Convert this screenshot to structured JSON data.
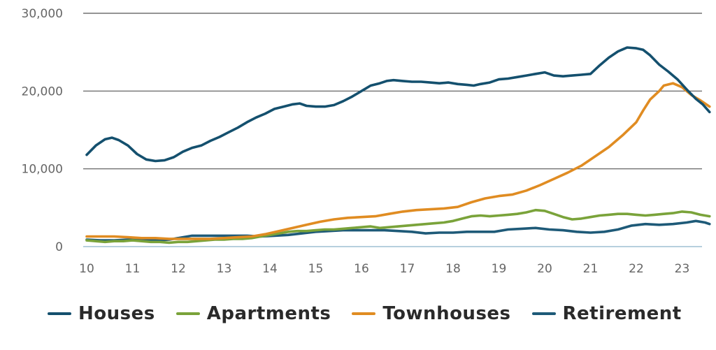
{
  "chart_data": {
    "type": "line",
    "title": "",
    "xlabel": "",
    "ylabel": "",
    "x_ticks": [
      "10",
      "11",
      "12",
      "13",
      "14",
      "15",
      "16",
      "17",
      "18",
      "19",
      "20",
      "21",
      "22",
      "23"
    ],
    "y_ticks": [
      "0",
      "10,000",
      "20,000",
      "30,000"
    ],
    "xlim": [
      10,
      23.6
    ],
    "ylim": [
      0,
      30000
    ],
    "grid": "horizontal",
    "legend_position": "bottom",
    "series": [
      {
        "name": "Houses",
        "color": "#14506e",
        "points": [
          [
            10,
            11800
          ],
          [
            10.2,
            13000
          ],
          [
            10.4,
            13800
          ],
          [
            10.55,
            14000
          ],
          [
            10.7,
            13700
          ],
          [
            10.9,
            13000
          ],
          [
            11.1,
            11900
          ],
          [
            11.3,
            11200
          ],
          [
            11.5,
            11000
          ],
          [
            11.7,
            11100
          ],
          [
            11.9,
            11500
          ],
          [
            12.1,
            12200
          ],
          [
            12.3,
            12700
          ],
          [
            12.5,
            13000
          ],
          [
            12.7,
            13600
          ],
          [
            12.9,
            14100
          ],
          [
            13.1,
            14700
          ],
          [
            13.3,
            15300
          ],
          [
            13.5,
            16000
          ],
          [
            13.7,
            16600
          ],
          [
            13.9,
            17100
          ],
          [
            14.1,
            17700
          ],
          [
            14.3,
            18000
          ],
          [
            14.5,
            18300
          ],
          [
            14.65,
            18400
          ],
          [
            14.8,
            18100
          ],
          [
            15,
            18000
          ],
          [
            15.2,
            18000
          ],
          [
            15.4,
            18200
          ],
          [
            15.6,
            18700
          ],
          [
            15.8,
            19300
          ],
          [
            16,
            20000
          ],
          [
            16.2,
            20700
          ],
          [
            16.4,
            21000
          ],
          [
            16.55,
            21300
          ],
          [
            16.7,
            21400
          ],
          [
            16.9,
            21300
          ],
          [
            17.1,
            21200
          ],
          [
            17.3,
            21200
          ],
          [
            17.5,
            21100
          ],
          [
            17.7,
            21000
          ],
          [
            17.9,
            21100
          ],
          [
            18.1,
            20900
          ],
          [
            18.3,
            20800
          ],
          [
            18.45,
            20700
          ],
          [
            18.6,
            20900
          ],
          [
            18.8,
            21100
          ],
          [
            19,
            21500
          ],
          [
            19.2,
            21600
          ],
          [
            19.4,
            21800
          ],
          [
            19.6,
            22000
          ],
          [
            19.8,
            22200
          ],
          [
            20,
            22400
          ],
          [
            20.2,
            22000
          ],
          [
            20.4,
            21900
          ],
          [
            20.6,
            22000
          ],
          [
            20.8,
            22100
          ],
          [
            21,
            22200
          ],
          [
            21.2,
            23300
          ],
          [
            21.4,
            24300
          ],
          [
            21.6,
            25100
          ],
          [
            21.8,
            25600
          ],
          [
            22,
            25500
          ],
          [
            22.15,
            25300
          ],
          [
            22.3,
            24600
          ],
          [
            22.5,
            23400
          ],
          [
            22.7,
            22500
          ],
          [
            22.9,
            21500
          ],
          [
            23.1,
            20200
          ],
          [
            23.3,
            19000
          ],
          [
            23.45,
            18300
          ],
          [
            23.6,
            17300
          ]
        ]
      },
      {
        "name": "Apartments",
        "color": "#7aa33a",
        "points": [
          [
            10,
            800
          ],
          [
            10.2,
            700
          ],
          [
            10.4,
            600
          ],
          [
            10.6,
            700
          ],
          [
            10.8,
            700
          ],
          [
            11,
            800
          ],
          [
            11.2,
            700
          ],
          [
            11.4,
            600
          ],
          [
            11.6,
            600
          ],
          [
            11.8,
            500
          ],
          [
            12,
            600
          ],
          [
            12.2,
            600
          ],
          [
            12.4,
            700
          ],
          [
            12.6,
            800
          ],
          [
            12.8,
            900
          ],
          [
            13,
            900
          ],
          [
            13.2,
            1000
          ],
          [
            13.4,
            1000
          ],
          [
            13.6,
            1100
          ],
          [
            13.8,
            1300
          ],
          [
            14,
            1500
          ],
          [
            14.2,
            1700
          ],
          [
            14.4,
            1900
          ],
          [
            14.6,
            2000
          ],
          [
            14.8,
            2000
          ],
          [
            15,
            2100
          ],
          [
            15.2,
            2200
          ],
          [
            15.4,
            2200
          ],
          [
            15.6,
            2300
          ],
          [
            15.8,
            2400
          ],
          [
            16,
            2500
          ],
          [
            16.2,
            2600
          ],
          [
            16.4,
            2400
          ],
          [
            16.6,
            2500
          ],
          [
            16.8,
            2600
          ],
          [
            17,
            2700
          ],
          [
            17.2,
            2800
          ],
          [
            17.4,
            2900
          ],
          [
            17.6,
            3000
          ],
          [
            17.8,
            3100
          ],
          [
            18,
            3300
          ],
          [
            18.2,
            3600
          ],
          [
            18.4,
            3900
          ],
          [
            18.6,
            4000
          ],
          [
            18.8,
            3900
          ],
          [
            19,
            4000
          ],
          [
            19.2,
            4100
          ],
          [
            19.4,
            4200
          ],
          [
            19.6,
            4400
          ],
          [
            19.8,
            4700
          ],
          [
            20,
            4600
          ],
          [
            20.2,
            4200
          ],
          [
            20.4,
            3800
          ],
          [
            20.6,
            3500
          ],
          [
            20.8,
            3600
          ],
          [
            21,
            3800
          ],
          [
            21.2,
            4000
          ],
          [
            21.4,
            4100
          ],
          [
            21.6,
            4200
          ],
          [
            21.8,
            4200
          ],
          [
            22,
            4100
          ],
          [
            22.2,
            4000
          ],
          [
            22.4,
            4100
          ],
          [
            22.6,
            4200
          ],
          [
            22.8,
            4300
          ],
          [
            23,
            4500
          ],
          [
            23.2,
            4400
          ],
          [
            23.4,
            4100
          ],
          [
            23.6,
            3900
          ]
        ]
      },
      {
        "name": "Townhouses",
        "color": "#e08c22",
        "points": [
          [
            10,
            1300
          ],
          [
            10.3,
            1300
          ],
          [
            10.6,
            1300
          ],
          [
            10.9,
            1200
          ],
          [
            11.2,
            1100
          ],
          [
            11.5,
            1100
          ],
          [
            11.8,
            1000
          ],
          [
            12.1,
            1000
          ],
          [
            12.4,
            1000
          ],
          [
            12.7,
            1000
          ],
          [
            13,
            1100
          ],
          [
            13.3,
            1200
          ],
          [
            13.6,
            1300
          ],
          [
            13.9,
            1600
          ],
          [
            14.2,
            2000
          ],
          [
            14.5,
            2400
          ],
          [
            14.8,
            2800
          ],
          [
            15.1,
            3200
          ],
          [
            15.4,
            3500
          ],
          [
            15.7,
            3700
          ],
          [
            16,
            3800
          ],
          [
            16.3,
            3900
          ],
          [
            16.6,
            4200
          ],
          [
            16.9,
            4500
          ],
          [
            17.2,
            4700
          ],
          [
            17.5,
            4800
          ],
          [
            17.8,
            4900
          ],
          [
            18.1,
            5100
          ],
          [
            18.4,
            5700
          ],
          [
            18.7,
            6200
          ],
          [
            19,
            6500
          ],
          [
            19.3,
            6700
          ],
          [
            19.6,
            7200
          ],
          [
            19.9,
            7900
          ],
          [
            20.2,
            8700
          ],
          [
            20.5,
            9500
          ],
          [
            20.8,
            10400
          ],
          [
            21.1,
            11600
          ],
          [
            21.4,
            12800
          ],
          [
            21.7,
            14300
          ],
          [
            22,
            16000
          ],
          [
            22.15,
            17500
          ],
          [
            22.3,
            18900
          ],
          [
            22.5,
            20000
          ],
          [
            22.6,
            20700
          ],
          [
            22.8,
            21000
          ],
          [
            23,
            20500
          ],
          [
            23.2,
            19500
          ],
          [
            23.4,
            18800
          ],
          [
            23.6,
            18000
          ]
        ]
      },
      {
        "name": "Retirement",
        "color": "#1e5a78",
        "points": [
          [
            10,
            900
          ],
          [
            10.3,
            800
          ],
          [
            10.6,
            800
          ],
          [
            10.9,
            900
          ],
          [
            11.2,
            900
          ],
          [
            11.5,
            800
          ],
          [
            11.8,
            900
          ],
          [
            12.1,
            1200
          ],
          [
            12.3,
            1400
          ],
          [
            12.6,
            1400
          ],
          [
            12.9,
            1400
          ],
          [
            13.2,
            1400
          ],
          [
            13.5,
            1400
          ],
          [
            13.8,
            1300
          ],
          [
            14.1,
            1400
          ],
          [
            14.4,
            1500
          ],
          [
            14.7,
            1700
          ],
          [
            15,
            1900
          ],
          [
            15.3,
            2000
          ],
          [
            15.6,
            2100
          ],
          [
            15.9,
            2100
          ],
          [
            16.2,
            2100
          ],
          [
            16.5,
            2100
          ],
          [
            16.8,
            2000
          ],
          [
            17.1,
            1900
          ],
          [
            17.4,
            1700
          ],
          [
            17.7,
            1800
          ],
          [
            18,
            1800
          ],
          [
            18.3,
            1900
          ],
          [
            18.6,
            1900
          ],
          [
            18.9,
            1900
          ],
          [
            19.2,
            2200
          ],
          [
            19.5,
            2300
          ],
          [
            19.8,
            2400
          ],
          [
            20.1,
            2200
          ],
          [
            20.4,
            2100
          ],
          [
            20.7,
            1900
          ],
          [
            21,
            1800
          ],
          [
            21.3,
            1900
          ],
          [
            21.6,
            2200
          ],
          [
            21.9,
            2700
          ],
          [
            22.2,
            2900
          ],
          [
            22.5,
            2800
          ],
          [
            22.8,
            2900
          ],
          [
            23.1,
            3100
          ],
          [
            23.3,
            3300
          ],
          [
            23.5,
            3100
          ],
          [
            23.6,
            2900
          ]
        ]
      }
    ]
  }
}
